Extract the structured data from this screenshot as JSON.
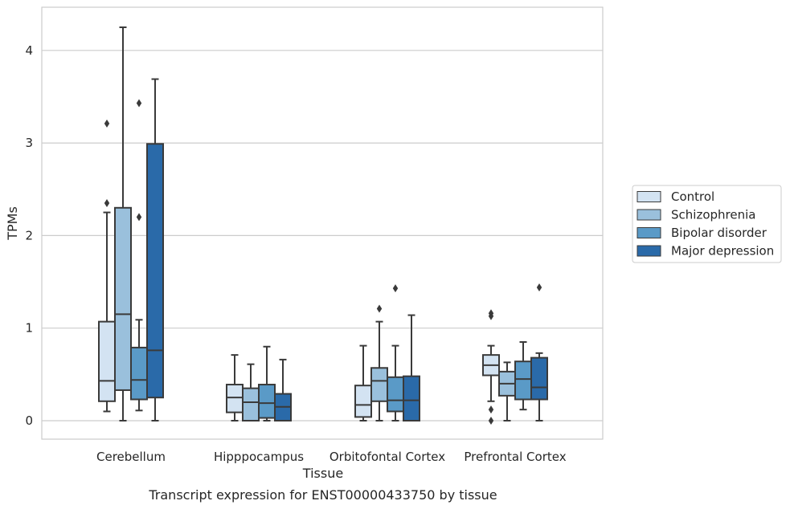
{
  "caption": "Transcript expression for ENST00000433750 by tissue",
  "chart_data": {
    "type": "box",
    "xlabel": "Tissue",
    "ylabel": "TPMs",
    "ylim": [
      -0.2,
      4.47
    ],
    "yticks": [
      0,
      1,
      2,
      3,
      4
    ],
    "grid": "horizontal",
    "legend_position": "right",
    "categories": [
      "Cerebellum",
      "Hipppocampus",
      "Orbitofontal Cortex",
      "Prefrontal Cortex"
    ],
    "series": [
      {
        "name": "Control",
        "color": "#d3e3f2",
        "boxes": [
          {
            "whisker_low": 0.1,
            "q1": 0.21,
            "median": 0.43,
            "q3": 1.07,
            "whisker_high": 2.25,
            "outliers": [
              2.35,
              3.21
            ]
          },
          {
            "whisker_low": 0.0,
            "q1": 0.09,
            "median": 0.25,
            "q3": 0.39,
            "whisker_high": 0.71,
            "outliers": []
          },
          {
            "whisker_low": 0.0,
            "q1": 0.04,
            "median": 0.17,
            "q3": 0.38,
            "whisker_high": 0.81,
            "outliers": []
          },
          {
            "whisker_low": 0.21,
            "q1": 0.49,
            "median": 0.6,
            "q3": 0.71,
            "whisker_high": 0.81,
            "outliers": [
              0.0,
              0.12,
              1.13,
              1.16
            ]
          }
        ]
      },
      {
        "name": "Schizophrenia",
        "color": "#9ac0dc",
        "boxes": [
          {
            "whisker_low": 0.0,
            "q1": 0.33,
            "median": 1.15,
            "q3": 2.3,
            "whisker_high": 4.25,
            "outliers": []
          },
          {
            "whisker_low": 0.0,
            "q1": 0.0,
            "median": 0.2,
            "q3": 0.35,
            "whisker_high": 0.61,
            "outliers": []
          },
          {
            "whisker_low": 0.0,
            "q1": 0.21,
            "median": 0.43,
            "q3": 0.57,
            "whisker_high": 1.07,
            "outliers": [
              1.21
            ]
          },
          {
            "whisker_low": 0.0,
            "q1": 0.27,
            "median": 0.4,
            "q3": 0.53,
            "whisker_high": 0.63,
            "outliers": []
          }
        ]
      },
      {
        "name": "Bipolar disorder",
        "color": "#5a9ac7",
        "boxes": [
          {
            "whisker_low": 0.11,
            "q1": 0.23,
            "median": 0.44,
            "q3": 0.79,
            "whisker_high": 1.09,
            "outliers": [
              2.2,
              3.43
            ]
          },
          {
            "whisker_low": 0.0,
            "q1": 0.03,
            "median": 0.19,
            "q3": 0.39,
            "whisker_high": 0.8,
            "outliers": []
          },
          {
            "whisker_low": 0.0,
            "q1": 0.1,
            "median": 0.22,
            "q3": 0.47,
            "whisker_high": 0.81,
            "outliers": [
              1.43
            ]
          },
          {
            "whisker_low": 0.12,
            "q1": 0.23,
            "median": 0.45,
            "q3": 0.64,
            "whisker_high": 0.85,
            "outliers": []
          }
        ]
      },
      {
        "name": "Major depression",
        "color": "#2a6aa9",
        "boxes": [
          {
            "whisker_low": 0.0,
            "q1": 0.25,
            "median": 0.76,
            "q3": 2.99,
            "whisker_high": 3.69,
            "outliers": []
          },
          {
            "whisker_low": 0.0,
            "q1": 0.0,
            "median": 0.15,
            "q3": 0.29,
            "whisker_high": 0.66,
            "outliers": []
          },
          {
            "whisker_low": 0.0,
            "q1": 0.0,
            "median": 0.22,
            "q3": 0.48,
            "whisker_high": 1.14,
            "outliers": []
          },
          {
            "whisker_low": 0.0,
            "q1": 0.23,
            "median": 0.36,
            "q3": 0.68,
            "whisker_high": 0.73,
            "outliers": [
              1.44
            ]
          }
        ]
      }
    ]
  }
}
